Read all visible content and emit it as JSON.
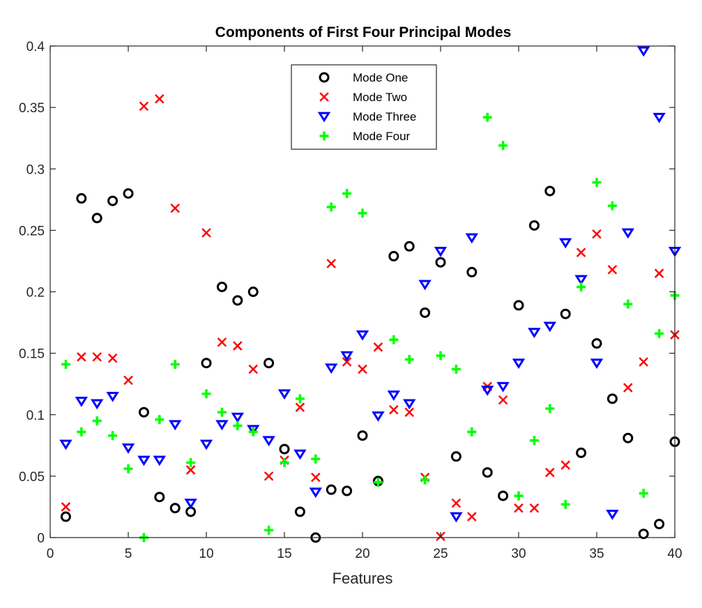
{
  "chart_data": {
    "type": "scatter",
    "title": "Components of First Four Principal Modes",
    "xlabel": "Features",
    "ylabel": "",
    "xlim": [
      0,
      40
    ],
    "ylim": [
      0,
      0.4
    ],
    "xticks": [
      "0",
      "5",
      "10",
      "15",
      "20",
      "25",
      "30",
      "35",
      "40"
    ],
    "yticks": [
      "0",
      "0.05",
      "0.1",
      "0.15",
      "0.2",
      "0.25",
      "0.3",
      "0.35",
      "0.4"
    ],
    "grid": false,
    "legend_position": "top-center",
    "x": [
      1,
      2,
      3,
      4,
      5,
      6,
      7,
      8,
      9,
      10,
      11,
      12,
      13,
      14,
      15,
      16,
      17,
      18,
      19,
      20,
      21,
      22,
      23,
      24,
      25,
      26,
      27,
      28,
      29,
      30,
      31,
      32,
      33,
      34,
      35,
      36,
      37,
      38,
      39,
      40
    ],
    "series": [
      {
        "name": "Mode One",
        "marker": "circle",
        "color": "#000000",
        "values": [
          0.017,
          0.276,
          0.26,
          0.274,
          0.28,
          0.102,
          0.033,
          0.024,
          0.021,
          0.142,
          0.204,
          0.193,
          0.2,
          0.142,
          0.072,
          0.021,
          0.0,
          0.039,
          0.038,
          0.083,
          0.046,
          0.229,
          0.237,
          0.183,
          0.224,
          0.066,
          0.216,
          0.053,
          0.034,
          0.189,
          0.254,
          0.282,
          0.182,
          0.069,
          0.158,
          0.113,
          0.081,
          0.003,
          0.011,
          0.078
        ]
      },
      {
        "name": "Mode Two",
        "marker": "x",
        "color": "#ff0000",
        "values": [
          0.025,
          0.147,
          0.147,
          0.146,
          0.128,
          0.351,
          0.357,
          0.268,
          0.055,
          0.248,
          0.159,
          0.156,
          0.137,
          0.05,
          0.063,
          0.106,
          0.049,
          0.223,
          0.143,
          0.137,
          0.155,
          0.104,
          0.102,
          0.049,
          0.001,
          0.028,
          0.017,
          0.123,
          0.112,
          0.024,
          0.024,
          0.053,
          0.059,
          0.232,
          0.247,
          0.218,
          0.122,
          0.143,
          0.215,
          0.165
        ]
      },
      {
        "name": "Mode Three",
        "marker": "triangle-down",
        "color": "#0000ff",
        "values": [
          0.076,
          0.111,
          0.109,
          0.115,
          0.073,
          0.063,
          0.063,
          0.092,
          0.028,
          0.076,
          0.092,
          0.098,
          0.088,
          0.079,
          0.117,
          0.068,
          0.037,
          0.138,
          0.148,
          0.165,
          0.099,
          0.116,
          0.109,
          0.206,
          0.233,
          0.017,
          0.244,
          0.12,
          0.123,
          0.142,
          0.167,
          0.172,
          0.24,
          0.21,
          0.142,
          0.019,
          0.248,
          0.396,
          0.342,
          0.233
        ]
      },
      {
        "name": "Mode Four",
        "marker": "plus",
        "color": "#00ff00",
        "values": [
          0.141,
          0.086,
          0.095,
          0.083,
          0.056,
          0.0,
          0.096,
          0.141,
          0.061,
          0.117,
          0.102,
          0.091,
          0.086,
          0.006,
          0.061,
          0.113,
          0.064,
          0.269,
          0.28,
          0.264,
          0.045,
          0.161,
          0.145,
          0.047,
          0.148,
          0.137,
          0.086,
          0.342,
          0.319,
          0.034,
          0.079,
          0.105,
          0.027,
          0.204,
          0.289,
          0.27,
          0.19,
          0.036,
          0.166,
          0.197
        ]
      }
    ]
  }
}
